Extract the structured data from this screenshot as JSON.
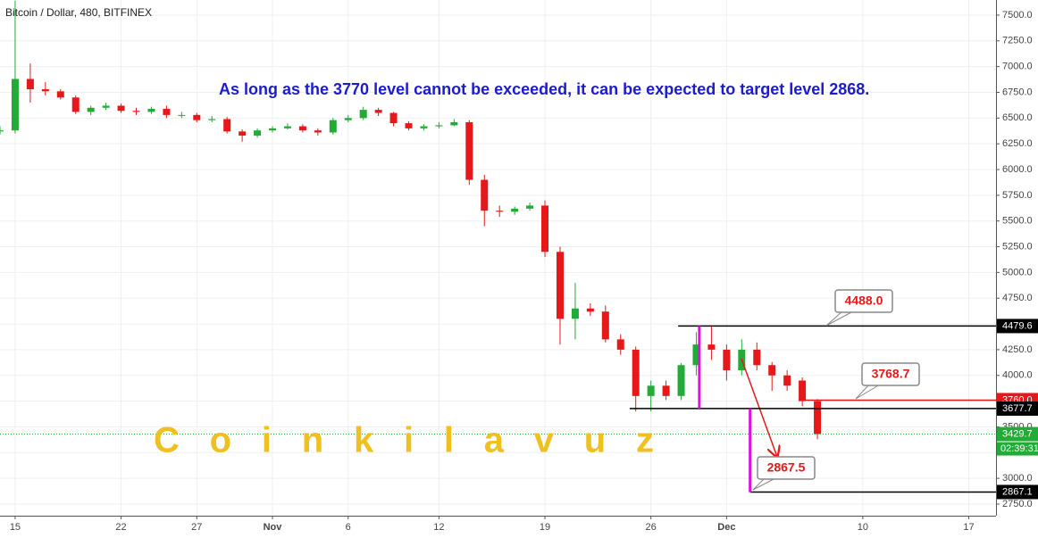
{
  "chart_data": {
    "type": "candlestick",
    "title": "Bitcoin / Dollar, 480, BITFINEX",
    "annotation": "As long as the 3770 level cannot be exceeded, it can be expected to target level 2868.",
    "watermark": "Coinkilavuz",
    "up_color": "#22ab37",
    "down_color": "#e6181a",
    "grid": true,
    "xlim": [
      -1,
      64.8
    ],
    "ylim": [
      2637,
      7647
    ],
    "xticks": [
      {
        "value": 0,
        "label": "15"
      },
      {
        "value": 7,
        "label": "22"
      },
      {
        "value": 12,
        "label": "27"
      },
      {
        "value": 17,
        "label": "Nov"
      },
      {
        "value": 22,
        "label": "6"
      },
      {
        "value": 28,
        "label": "12"
      },
      {
        "value": 35,
        "label": "19"
      },
      {
        "value": 42,
        "label": "26"
      },
      {
        "value": 47,
        "label": "Dec"
      },
      {
        "value": 56,
        "label": "10"
      },
      {
        "value": 63,
        "label": "17"
      }
    ],
    "yticks": [
      {
        "value": 7500,
        "label": "7500.0"
      },
      {
        "value": 7250,
        "label": "7250.0"
      },
      {
        "value": 7000,
        "label": "7000.0"
      },
      {
        "value": 6750,
        "label": "6750.0"
      },
      {
        "value": 6500,
        "label": "6500.0"
      },
      {
        "value": 6250,
        "label": "6250.0"
      },
      {
        "value": 6000,
        "label": "6000.0"
      },
      {
        "value": 5750,
        "label": "5750.0"
      },
      {
        "value": 5500,
        "label": "5500.0"
      },
      {
        "value": 5250,
        "label": "5250.0"
      },
      {
        "value": 5000,
        "label": "5000.0"
      },
      {
        "value": 4750,
        "label": "4750.0"
      },
      {
        "value": 4500,
        "label": "4500.0"
      },
      {
        "value": 4250,
        "label": "4250.0"
      },
      {
        "value": 4000,
        "label": "4000.0"
      },
      {
        "value": 3750,
        "label": "3750.0"
      },
      {
        "value": 3500,
        "label": "3500.0"
      },
      {
        "value": 3250,
        "label": "3250.0"
      },
      {
        "value": 3000,
        "label": "3000.0"
      },
      {
        "value": 2750,
        "label": "2750.0"
      }
    ],
    "x": [
      -1,
      0,
      1,
      2,
      3,
      4,
      5,
      6,
      7,
      8,
      9,
      10,
      11,
      12,
      13,
      14,
      15,
      16,
      17,
      18,
      19,
      20,
      21,
      22,
      23,
      24,
      25,
      26,
      27,
      28,
      29,
      30,
      31,
      32,
      33,
      34,
      35,
      36,
      37,
      38,
      39,
      40,
      41,
      42,
      43,
      44,
      45,
      46,
      47,
      48,
      49,
      50,
      51,
      52,
      53
    ],
    "open": [
      6370,
      6380,
      6880,
      6780,
      6760,
      6700,
      6560,
      6600,
      6620,
      6570,
      6560,
      6590,
      6530,
      6530,
      6480,
      6490,
      6370,
      6330,
      6380,
      6400,
      6420,
      6380,
      6360,
      6480,
      6500,
      6580,
      6550,
      6450,
      6400,
      6420,
      6430,
      6460,
      5900,
      5600,
      5590,
      5620,
      5650,
      5200,
      4550,
      4650,
      4620,
      4350,
      4250,
      3800,
      3900,
      3800,
      4100,
      4300,
      4250,
      4050,
      4250,
      4100,
      4000,
      3950,
      3750
    ],
    "high": [
      6420,
      7640,
      7030,
      6850,
      6780,
      6720,
      6620,
      6650,
      6640,
      6600,
      6610,
      6620,
      6560,
      6550,
      6520,
      6510,
      6390,
      6400,
      6420,
      6450,
      6440,
      6400,
      6500,
      6530,
      6610,
      6600,
      6560,
      6470,
      6440,
      6460,
      6490,
      6480,
      5950,
      5650,
      5640,
      5680,
      5700,
      5250,
      4900,
      4700,
      4680,
      4400,
      4280,
      3950,
      3950,
      4120,
      4420,
      4488,
      4300,
      4350,
      4320,
      4130,
      4050,
      3980,
      3770
    ],
    "low": [
      6340,
      6350,
      6650,
      6720,
      6680,
      6540,
      6530,
      6580,
      6550,
      6530,
      6540,
      6500,
      6500,
      6460,
      6460,
      6350,
      6270,
      6310,
      6360,
      6390,
      6360,
      6330,
      6340,
      6460,
      6480,
      6520,
      6420,
      6380,
      6380,
      6400,
      6420,
      5850,
      5450,
      5540,
      5560,
      5600,
      5150,
      4300,
      4350,
      4580,
      4320,
      4200,
      3650,
      3650,
      3760,
      3760,
      4000,
      4150,
      3950,
      4000,
      4050,
      3850,
      3850,
      3700,
      3380
    ],
    "close": [
      6380,
      6880,
      6780,
      6760,
      6700,
      6560,
      6600,
      6620,
      6570,
      6560,
      6590,
      6530,
      6530,
      6480,
      6490,
      6370,
      6330,
      6380,
      6400,
      6420,
      6380,
      6360,
      6480,
      6500,
      6580,
      6550,
      6450,
      6400,
      6420,
      6430,
      6460,
      5900,
      5600,
      5590,
      5620,
      5650,
      5200,
      4550,
      4650,
      4620,
      4350,
      4250,
      3800,
      3900,
      3800,
      4100,
      4300,
      4250,
      4050,
      4250,
      4100,
      4000,
      3900,
      3750,
      3430
    ],
    "levels": [
      {
        "value": 4479.6,
        "label": "4479.6",
        "color": "#000000",
        "from": 43.8
      },
      {
        "value": 3760,
        "label": "3760.0",
        "color": "#e6181a",
        "from": 52.1
      },
      {
        "value": 3677.7,
        "label": "3677.7",
        "color": "#000000",
        "from": 40.6
      },
      {
        "value": 2867.1,
        "label": "2867.1",
        "color": "#000000",
        "from": 48.55
      }
    ],
    "last_price": {
      "value": 3429.7,
      "label": "3429.7",
      "countdown": "02:39:31",
      "color": "#22ab37"
    },
    "measures": [
      {
        "x": 45.2,
        "from": 4479.6,
        "to": 3677.7,
        "color": "#e010e0"
      },
      {
        "x": 48.55,
        "from": 3677.7,
        "to": 2867.1,
        "color": "#e010e0"
      }
    ],
    "callouts": [
      {
        "value": 4488,
        "label": "4488.0"
      },
      {
        "value": 3768.7,
        "label": "3768.7"
      },
      {
        "value": 2867.5,
        "label": "2867.5"
      }
    ]
  }
}
